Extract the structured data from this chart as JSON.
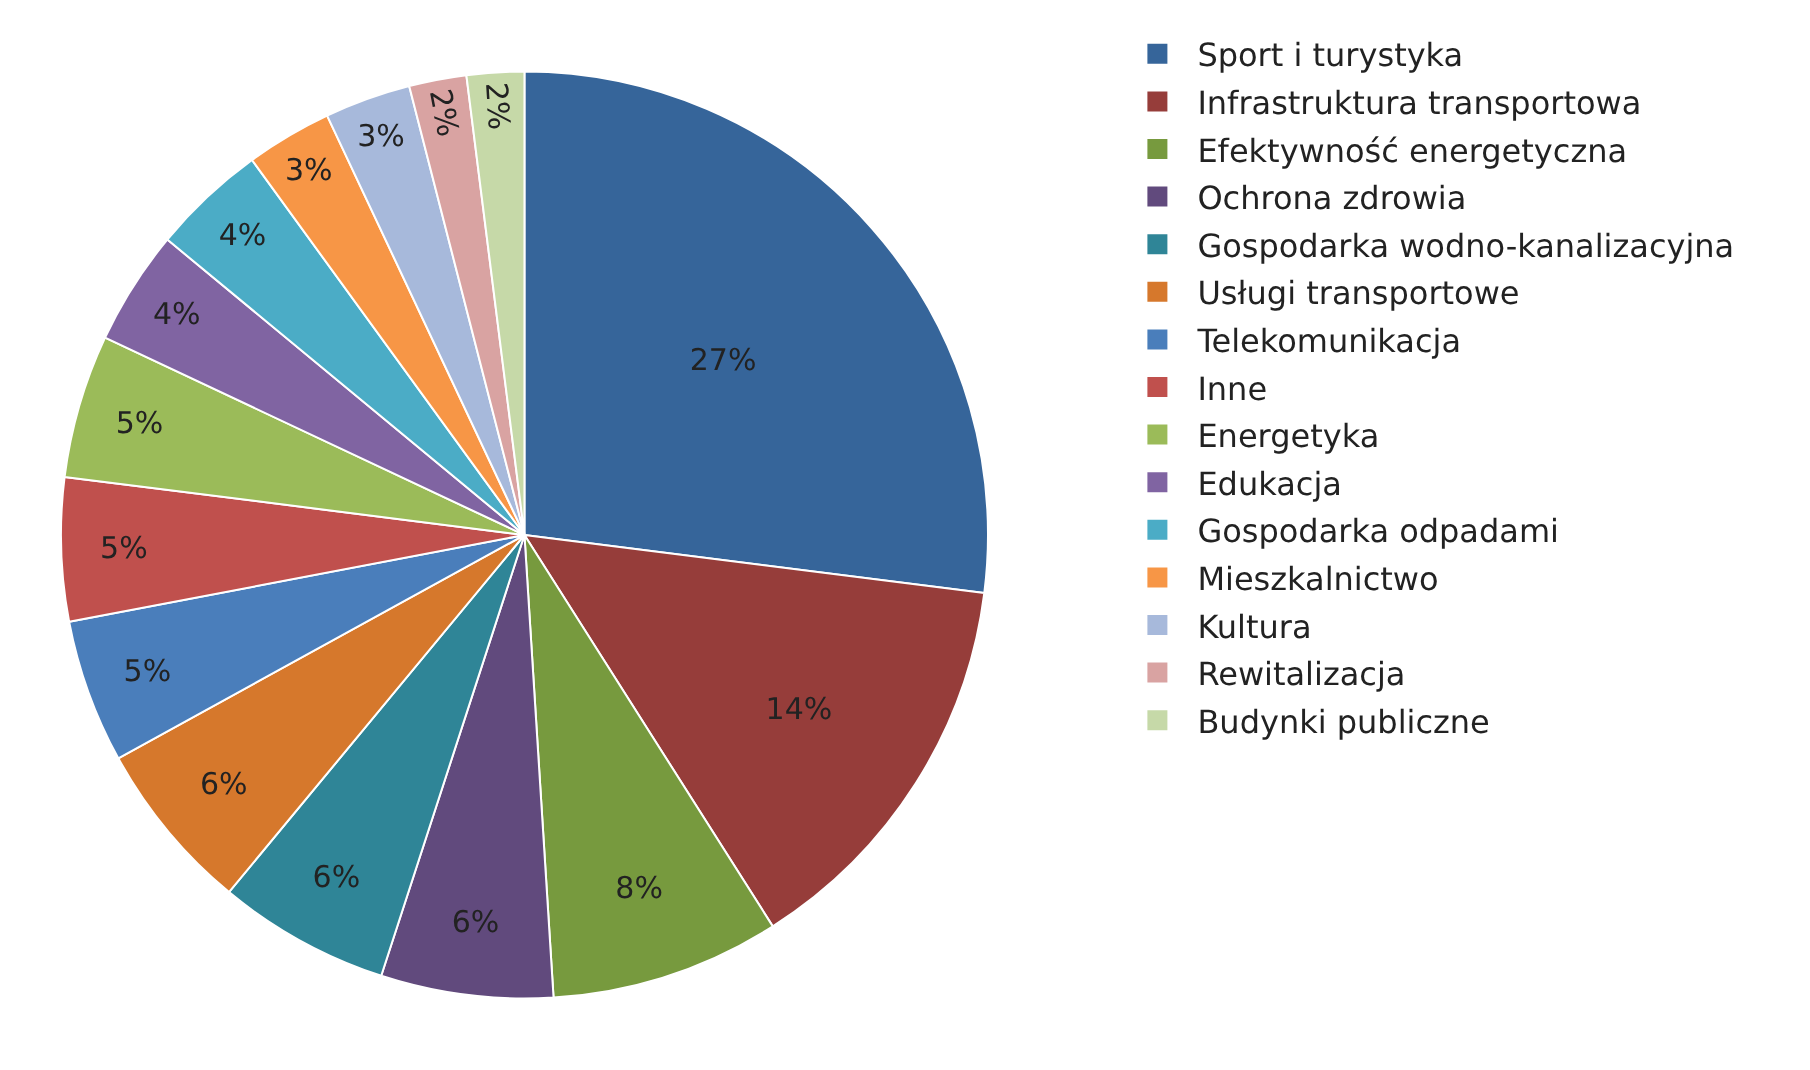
{
  "chart_data": {
    "type": "pie",
    "categories": [
      "Sport i turystyka",
      "Infrastruktura transportowa",
      "Efektywność energetyczna",
      "Ochrona zdrowia",
      "Gospodarka wodno-kanalizacyjna",
      "Usługi transportowe",
      "Telekomunikacja",
      "Inne",
      "Energetyka",
      "Edukacja",
      "Gospodarka odpadami",
      "Mieszkalnictwo",
      "Kultura",
      "Rewitalizacja",
      "Budynki publiczne"
    ],
    "values": [
      27,
      14,
      8,
      6,
      6,
      6,
      5,
      5,
      5,
      4,
      4,
      3,
      3,
      2,
      2
    ],
    "value_labels": [
      "27%",
      "14%",
      "8%",
      "6%",
      "6%",
      "6%",
      "5%",
      "5%",
      "5%",
      "4%",
      "4%",
      "3%",
      "3%",
      "2%",
      "2%"
    ],
    "colors": [
      "#36659a",
      "#963d3a",
      "#779a3e",
      "#614a7d",
      "#2f8597",
      "#d6782c",
      "#4a7ebb",
      "#c0504d",
      "#9bbb59",
      "#8064a2",
      "#4bacc6",
      "#f79646",
      "#a7b9db",
      "#d9a3a2",
      "#c6d9a8"
    ],
    "legend": "right"
  }
}
